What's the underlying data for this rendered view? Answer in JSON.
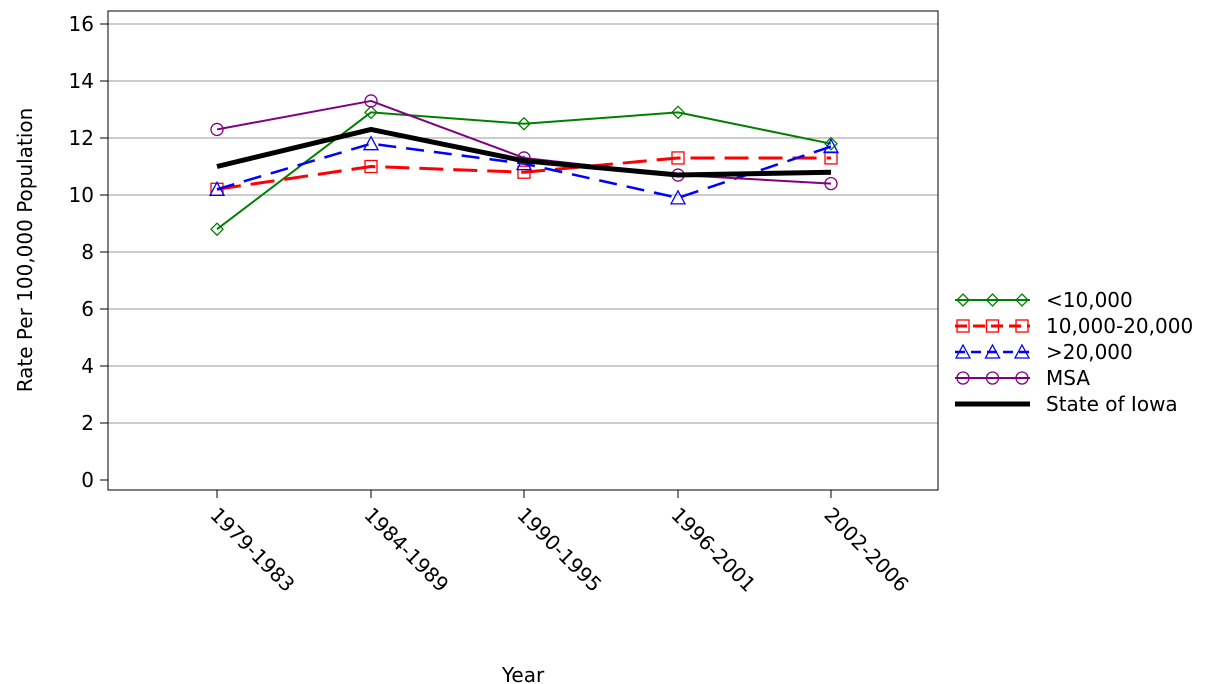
{
  "chart_data": {
    "type": "line",
    "title": "",
    "xlabel": "Year",
    "ylabel": "Rate Per 100,000 Population",
    "categories": [
      "1979-1983",
      "1984-1989",
      "1990-1995",
      "1996-2001",
      "2002-2006"
    ],
    "ylim": [
      0,
      16
    ],
    "yticks": [
      0,
      2,
      4,
      6,
      8,
      10,
      12,
      14,
      16
    ],
    "grid": "horizontal",
    "legend_position": "right",
    "series": [
      {
        "name": "<10,000",
        "color": "#008000",
        "marker": "diamond",
        "dash": "solid",
        "values": [
          8.8,
          12.9,
          12.5,
          12.9,
          11.8
        ]
      },
      {
        "name": "10,000-20,000",
        "color": "#ff0000",
        "marker": "square",
        "dash": "long-dash",
        "values": [
          10.2,
          11.0,
          10.8,
          11.3,
          11.3
        ]
      },
      {
        "name": ">20,000",
        "color": "#0000ff",
        "marker": "triangle",
        "dash": "dash",
        "values": [
          10.2,
          11.8,
          11.1,
          9.9,
          11.7
        ]
      },
      {
        "name": "MSA",
        "color": "#800080",
        "marker": "circle",
        "dash": "solid",
        "values": [
          12.3,
          13.3,
          11.3,
          10.7,
          10.4
        ]
      },
      {
        "name": "State of Iowa",
        "color": "#000000",
        "marker": "none",
        "dash": "solid-thick",
        "values": [
          11.0,
          12.3,
          11.2,
          10.7,
          10.8
        ]
      }
    ]
  }
}
